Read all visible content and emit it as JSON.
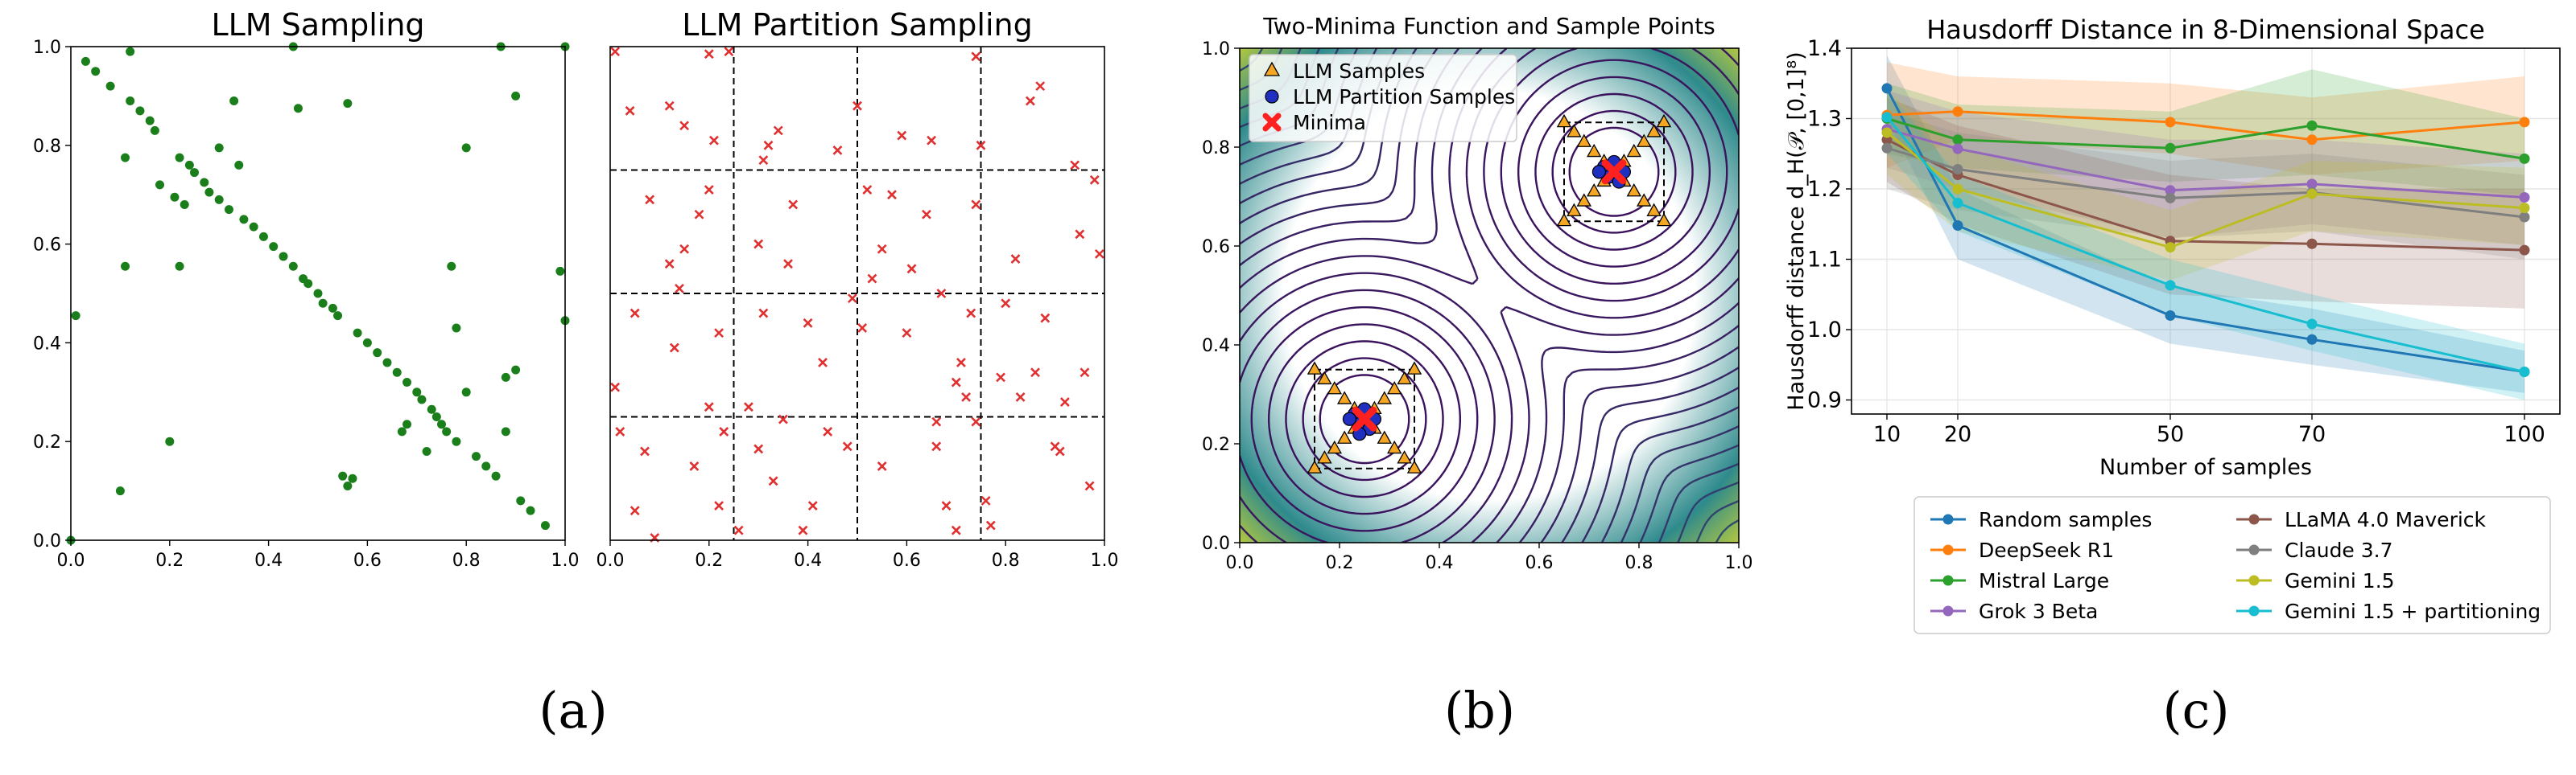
{
  "captions": [
    "(a)",
    "(b)",
    "(c)"
  ],
  "chart_data": [
    {
      "id": "llm_sampling",
      "type": "scatter",
      "title": "LLM Sampling",
      "xlabel": "",
      "ylabel": "",
      "xlim": [
        0,
        1
      ],
      "ylim": [
        0,
        1
      ],
      "xticks": [
        "0.0",
        "0.2",
        "0.4",
        "0.6",
        "0.8",
        "1.0"
      ],
      "yticks": [
        "0.0",
        "0.2",
        "0.4",
        "0.6",
        "0.8",
        "1.0"
      ],
      "grid": false,
      "marker_color": "#1a7f1a",
      "points": [
        [
          0.0,
          0.0
        ],
        [
          0.01,
          0.455
        ],
        [
          0.03,
          0.97
        ],
        [
          0.05,
          0.95
        ],
        [
          0.08,
          0.92
        ],
        [
          0.1,
          0.1
        ],
        [
          0.11,
          0.555
        ],
        [
          0.11,
          0.775
        ],
        [
          0.12,
          0.99
        ],
        [
          0.12,
          0.89
        ],
        [
          0.14,
          0.87
        ],
        [
          0.16,
          0.85
        ],
        [
          0.17,
          0.83
        ],
        [
          0.18,
          0.72
        ],
        [
          0.2,
          0.2
        ],
        [
          0.21,
          0.695
        ],
        [
          0.22,
          0.555
        ],
        [
          0.22,
          0.775
        ],
        [
          0.23,
          0.68
        ],
        [
          0.24,
          0.76
        ],
        [
          0.25,
          0.745
        ],
        [
          0.27,
          0.725
        ],
        [
          0.28,
          0.705
        ],
        [
          0.3,
          0.795
        ],
        [
          0.3,
          0.69
        ],
        [
          0.32,
          0.67
        ],
        [
          0.33,
          0.89
        ],
        [
          0.34,
          0.76
        ],
        [
          0.35,
          0.65
        ],
        [
          0.37,
          0.635
        ],
        [
          0.39,
          0.615
        ],
        [
          0.41,
          0.595
        ],
        [
          0.43,
          0.575
        ],
        [
          0.45,
          0.555
        ],
        [
          0.45,
          1.0
        ],
        [
          0.46,
          0.875
        ],
        [
          0.47,
          0.53
        ],
        [
          0.48,
          0.52
        ],
        [
          0.5,
          0.5
        ],
        [
          0.51,
          0.48
        ],
        [
          0.53,
          0.47
        ],
        [
          0.54,
          0.455
        ],
        [
          0.55,
          0.13
        ],
        [
          0.56,
          0.11
        ],
        [
          0.56,
          0.885
        ],
        [
          0.57,
          0.125
        ],
        [
          0.58,
          0.42
        ],
        [
          0.6,
          0.4
        ],
        [
          0.62,
          0.38
        ],
        [
          0.64,
          0.36
        ],
        [
          0.66,
          0.34
        ],
        [
          0.67,
          0.22
        ],
        [
          0.68,
          0.235
        ],
        [
          0.68,
          0.32
        ],
        [
          0.7,
          0.3
        ],
        [
          0.71,
          0.285
        ],
        [
          0.72,
          0.18
        ],
        [
          0.73,
          0.265
        ],
        [
          0.74,
          0.25
        ],
        [
          0.75,
          0.235
        ],
        [
          0.76,
          0.22
        ],
        [
          0.77,
          0.555
        ],
        [
          0.78,
          0.2
        ],
        [
          0.78,
          0.43
        ],
        [
          0.8,
          0.3
        ],
        [
          0.8,
          0.795
        ],
        [
          0.82,
          0.17
        ],
        [
          0.84,
          0.15
        ],
        [
          0.86,
          0.13
        ],
        [
          0.87,
          1.0
        ],
        [
          0.88,
          0.22
        ],
        [
          0.88,
          0.33
        ],
        [
          0.9,
          0.345
        ],
        [
          0.9,
          0.9
        ],
        [
          0.91,
          0.08
        ],
        [
          0.93,
          0.06
        ],
        [
          0.96,
          0.03
        ],
        [
          0.99,
          0.545
        ],
        [
          1.0,
          0.445
        ],
        [
          1.0,
          1.0
        ]
      ]
    },
    {
      "id": "llm_partition_sampling",
      "type": "scatter",
      "title": "LLM Partition Sampling",
      "xlabel": "",
      "ylabel": "",
      "xlim": [
        0,
        1
      ],
      "ylim": [
        0,
        1
      ],
      "xticks": [
        "0.0",
        "0.2",
        "0.4",
        "0.6",
        "0.8",
        "1.0"
      ],
      "yticks": [
        "0.0",
        "0.2",
        "0.4",
        "0.6",
        "0.8",
        "1.0"
      ],
      "grid": false,
      "partition_lines": [
        0.25,
        0.5,
        0.75
      ],
      "marker_color": "#e03030",
      "points": [
        [
          0.01,
          0.99
        ],
        [
          0.01,
          0.31
        ],
        [
          0.02,
          0.22
        ],
        [
          0.04,
          0.87
        ],
        [
          0.05,
          0.46
        ],
        [
          0.05,
          0.06
        ],
        [
          0.07,
          0.18
        ],
        [
          0.08,
          0.69
        ],
        [
          0.09,
          0.005
        ],
        [
          0.12,
          0.88
        ],
        [
          0.12,
          0.56
        ],
        [
          0.13,
          0.39
        ],
        [
          0.14,
          0.51
        ],
        [
          0.15,
          0.84
        ],
        [
          0.15,
          0.59
        ],
        [
          0.17,
          0.15
        ],
        [
          0.18,
          0.66
        ],
        [
          0.2,
          0.71
        ],
        [
          0.2,
          0.27
        ],
        [
          0.21,
          0.81
        ],
        [
          0.22,
          0.42
        ],
        [
          0.22,
          0.07
        ],
        [
          0.23,
          0.22
        ],
        [
          0.24,
          0.99
        ],
        [
          0.26,
          0.02
        ],
        [
          0.28,
          0.27
        ],
        [
          0.2,
          0.985
        ],
        [
          0.3,
          0.6
        ],
        [
          0.3,
          0.185
        ],
        [
          0.31,
          0.77
        ],
        [
          0.31,
          0.46
        ],
        [
          0.32,
          0.8
        ],
        [
          0.33,
          0.12
        ],
        [
          0.34,
          0.83
        ],
        [
          0.35,
          0.245
        ],
        [
          0.36,
          0.56
        ],
        [
          0.37,
          0.68
        ],
        [
          0.39,
          0.02
        ],
        [
          0.4,
          0.44
        ],
        [
          0.41,
          0.07
        ],
        [
          0.43,
          0.36
        ],
        [
          0.44,
          0.22
        ],
        [
          0.46,
          0.79
        ],
        [
          0.48,
          0.19
        ],
        [
          0.49,
          0.49
        ],
        [
          0.5,
          0.88
        ],
        [
          0.51,
          0.43
        ],
        [
          0.52,
          0.71
        ],
        [
          0.53,
          0.53
        ],
        [
          0.55,
          0.59
        ],
        [
          0.55,
          0.15
        ],
        [
          0.57,
          0.7
        ],
        [
          0.59,
          0.82
        ],
        [
          0.6,
          0.42
        ],
        [
          0.61,
          0.55
        ],
        [
          0.64,
          0.66
        ],
        [
          0.65,
          0.81
        ],
        [
          0.66,
          0.24
        ],
        [
          0.66,
          0.19
        ],
        [
          0.67,
          0.5
        ],
        [
          0.68,
          0.07
        ],
        [
          0.7,
          0.32
        ],
        [
          0.7,
          0.02
        ],
        [
          0.71,
          0.36
        ],
        [
          0.72,
          0.29
        ],
        [
          0.73,
          0.46
        ],
        [
          0.74,
          0.98
        ],
        [
          0.74,
          0.68
        ],
        [
          0.74,
          0.24
        ],
        [
          0.75,
          0.8
        ],
        [
          0.76,
          0.08
        ],
        [
          0.77,
          0.03
        ],
        [
          0.79,
          0.33
        ],
        [
          0.8,
          0.48
        ],
        [
          0.82,
          0.57
        ],
        [
          0.83,
          0.29
        ],
        [
          0.85,
          0.89
        ],
        [
          0.86,
          0.34
        ],
        [
          0.87,
          0.92
        ],
        [
          0.88,
          0.45
        ],
        [
          0.9,
          0.19
        ],
        [
          0.91,
          0.18
        ],
        [
          0.92,
          0.28
        ],
        [
          0.94,
          0.76
        ],
        [
          0.95,
          0.62
        ],
        [
          0.96,
          0.34
        ],
        [
          0.97,
          0.11
        ],
        [
          0.98,
          0.73
        ],
        [
          0.99,
          0.58
        ]
      ]
    },
    {
      "id": "two_minima",
      "type": "scatter",
      "title": "Two-Minima Function and Sample Points",
      "xlabel": "",
      "ylabel": "",
      "xlim": [
        0,
        1
      ],
      "ylim": [
        0,
        1
      ],
      "xticks": [
        "0.0",
        "0.2",
        "0.4",
        "0.6",
        "0.8",
        "1.0"
      ],
      "yticks": [
        "0.0",
        "0.2",
        "0.4",
        "0.6",
        "0.8",
        "1.0"
      ],
      "legend": [
        "LLM Samples",
        "LLM Partition Samples",
        "Minima"
      ],
      "legend_position": "top-left",
      "minima": [
        [
          0.25,
          0.25
        ],
        [
          0.75,
          0.75
        ]
      ],
      "sample_boxes": [
        [
          0.15,
          0.35,
          0.15,
          0.35
        ],
        [
          0.65,
          0.85,
          0.65,
          0.85
        ]
      ],
      "colors": {
        "llm_samples": "#f5a623",
        "partition_samples": "#1f2fbf",
        "minima": "#ff2020",
        "contour_dark": "#3b0f5c",
        "contour_light": "#e8e022"
      },
      "llm_samples_x_pattern": [
        [
          0.15,
          0.15
        ],
        [
          0.17,
          0.17
        ],
        [
          0.19,
          0.19
        ],
        [
          0.21,
          0.21
        ],
        [
          0.23,
          0.23
        ],
        [
          0.25,
          0.25
        ],
        [
          0.27,
          0.27
        ],
        [
          0.29,
          0.29
        ],
        [
          0.31,
          0.31
        ],
        [
          0.33,
          0.33
        ],
        [
          0.35,
          0.35
        ],
        [
          0.15,
          0.35
        ],
        [
          0.17,
          0.33
        ],
        [
          0.19,
          0.31
        ],
        [
          0.21,
          0.29
        ],
        [
          0.23,
          0.27
        ],
        [
          0.27,
          0.23
        ],
        [
          0.29,
          0.21
        ],
        [
          0.31,
          0.19
        ],
        [
          0.33,
          0.17
        ],
        [
          0.35,
          0.15
        ],
        [
          0.65,
          0.65
        ],
        [
          0.67,
          0.67
        ],
        [
          0.69,
          0.69
        ],
        [
          0.71,
          0.71
        ],
        [
          0.73,
          0.73
        ],
        [
          0.75,
          0.75
        ],
        [
          0.77,
          0.77
        ],
        [
          0.79,
          0.79
        ],
        [
          0.81,
          0.81
        ],
        [
          0.83,
          0.83
        ],
        [
          0.85,
          0.85
        ],
        [
          0.65,
          0.85
        ],
        [
          0.67,
          0.83
        ],
        [
          0.69,
          0.81
        ],
        [
          0.71,
          0.79
        ],
        [
          0.73,
          0.77
        ],
        [
          0.77,
          0.73
        ],
        [
          0.79,
          0.71
        ],
        [
          0.81,
          0.69
        ],
        [
          0.83,
          0.67
        ],
        [
          0.85,
          0.65
        ]
      ],
      "partition_samples": [
        [
          0.23,
          0.26
        ],
        [
          0.24,
          0.24
        ],
        [
          0.25,
          0.27
        ],
        [
          0.26,
          0.23
        ],
        [
          0.27,
          0.25
        ],
        [
          0.24,
          0.22
        ],
        [
          0.22,
          0.25
        ],
        [
          0.73,
          0.76
        ],
        [
          0.74,
          0.74
        ],
        [
          0.75,
          0.77
        ],
        [
          0.76,
          0.73
        ],
        [
          0.77,
          0.75
        ],
        [
          0.72,
          0.75
        ]
      ]
    },
    {
      "id": "hausdorff",
      "type": "line",
      "title": "Hausdorff Distance in 8-Dimensional Space",
      "xlabel": "Number of samples",
      "ylabel": "Hausdorff distance",
      "ylabel_math": "d_H(𝒫, [0,1]⁸)",
      "x": [
        10,
        20,
        50,
        70,
        100
      ],
      "xticks": [
        "10",
        "20",
        "50",
        "70",
        "100"
      ],
      "xlim": [
        5,
        105
      ],
      "ylim": [
        0.88,
        1.4
      ],
      "yticks": [
        "0.9",
        "1.0",
        "1.1",
        "1.2",
        "1.3",
        "1.4"
      ],
      "grid": true,
      "legend_position": "below",
      "series": [
        {
          "name": "Random samples",
          "color": "#1f77b4",
          "values": [
            1.343,
            1.148,
            1.02,
            0.986,
            0.94
          ],
          "band": [
            [
              1.39,
              1.3
            ],
            [
              1.2,
              1.1
            ],
            [
              1.06,
              0.98
            ],
            [
              1.03,
              0.95
            ],
            [
              0.97,
              0.91
            ]
          ]
        },
        {
          "name": "DeepSeek R1",
          "color": "#ff7f0e",
          "values": [
            1.305,
            1.31,
            1.295,
            1.27,
            1.295
          ],
          "band": [
            [
              1.38,
              1.23
            ],
            [
              1.36,
              1.27
            ],
            [
              1.35,
              1.25
            ],
            [
              1.33,
              1.22
            ],
            [
              1.36,
              1.24
            ]
          ]
        },
        {
          "name": "Mistral Large",
          "color": "#2ca02c",
          "values": [
            1.3,
            1.27,
            1.258,
            1.29,
            1.243
          ],
          "band": [
            [
              1.35,
              1.25
            ],
            [
              1.32,
              1.23
            ],
            [
              1.31,
              1.21
            ],
            [
              1.37,
              1.22
            ],
            [
              1.3,
              1.19
            ]
          ]
        },
        {
          "name": "Grok 3 Beta",
          "color": "#9467bd",
          "values": [
            1.285,
            1.257,
            1.198,
            1.207,
            1.188
          ],
          "band": [
            [
              1.34,
              1.23
            ],
            [
              1.31,
              1.2
            ],
            [
              1.27,
              1.13
            ],
            [
              1.27,
              1.15
            ],
            [
              1.25,
              1.12
            ]
          ]
        },
        {
          "name": "LLaMA 4.0 Maverick",
          "color": "#8c564b",
          "values": [
            1.27,
            1.22,
            1.126,
            1.122,
            1.113
          ],
          "band": [
            [
              1.33,
              1.21
            ],
            [
              1.29,
              1.15
            ],
            [
              1.22,
              1.05
            ],
            [
              1.2,
              1.04
            ],
            [
              1.2,
              1.03
            ]
          ]
        },
        {
          "name": "Claude 3.7",
          "color": "#7f7f7f",
          "values": [
            1.258,
            1.228,
            1.187,
            1.195,
            1.16
          ],
          "band": [
            [
              1.31,
              1.2
            ],
            [
              1.28,
              1.17
            ],
            [
              1.24,
              1.13
            ],
            [
              1.25,
              1.14
            ],
            [
              1.22,
              1.1
            ]
          ]
        },
        {
          "name": "Gemini 1.5",
          "color": "#bcbd22",
          "values": [
            1.28,
            1.2,
            1.117,
            1.193,
            1.173
          ],
          "band": [
            [
              1.34,
              1.22
            ],
            [
              1.26,
              1.14
            ],
            [
              1.17,
              1.07
            ],
            [
              1.24,
              1.14
            ],
            [
              1.23,
              1.12
            ]
          ]
        },
        {
          "name": "Gemini 1.5 + partitioning",
          "color": "#17becf",
          "values": [
            1.302,
            1.18,
            1.063,
            1.008,
            0.94
          ],
          "band": [
            [
              1.34,
              1.25
            ],
            [
              1.22,
              1.14
            ],
            [
              1.1,
              1.02
            ],
            [
              1.05,
              0.97
            ],
            [
              0.98,
              0.9
            ]
          ]
        }
      ]
    }
  ]
}
